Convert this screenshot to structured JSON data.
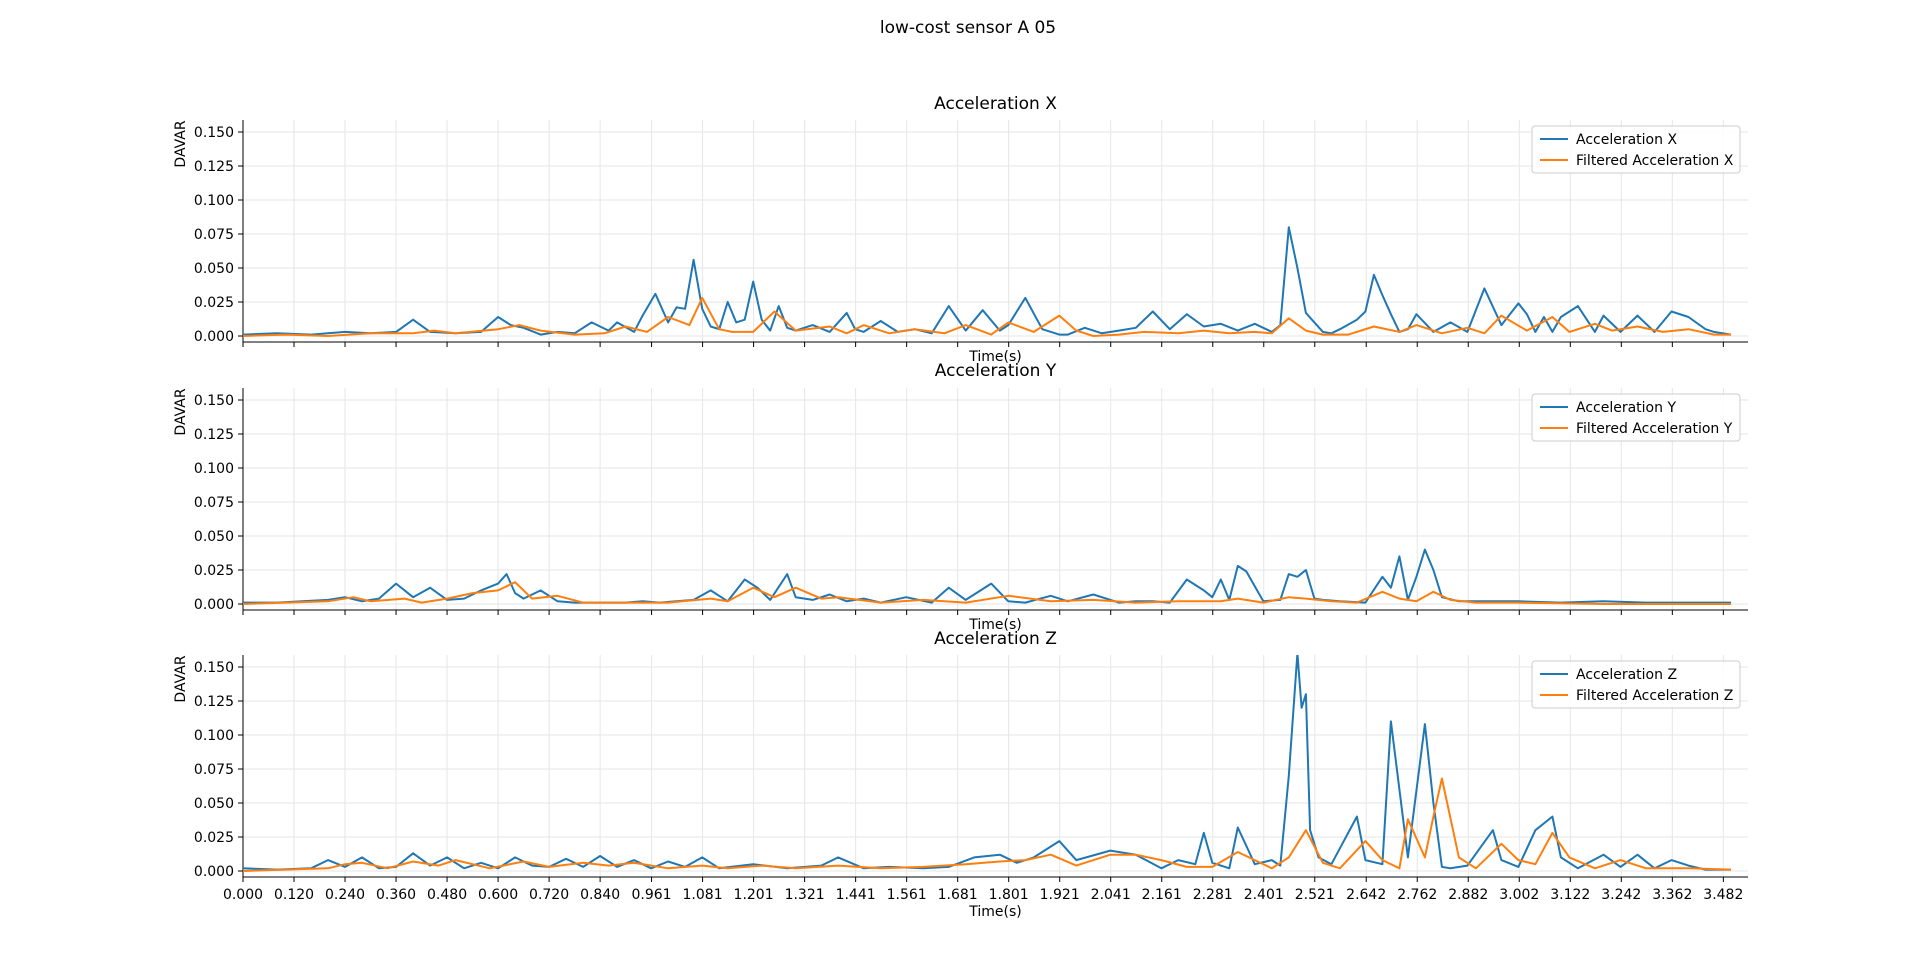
{
  "suptitle": "low-cost sensor A 05",
  "colors": {
    "raw": "#1f77b4",
    "filtered": "#ff7f0e",
    "grid": "#e6e6e6"
  },
  "chart_data": [
    {
      "type": "line",
      "title": "Acceleration X",
      "xlabel": "Time(s)",
      "ylabel": "DAVAR",
      "xlim": [
        0,
        3.54
      ],
      "ylim": [
        0,
        0.16
      ],
      "yticks": [
        "0.000",
        "0.025",
        "0.050",
        "0.075",
        "0.100",
        "0.125",
        "0.150"
      ],
      "legend": "top-right",
      "grid": true,
      "series": [
        {
          "name": "Acceleration X",
          "role": "raw",
          "x": [
            0.0,
            0.08,
            0.16,
            0.24,
            0.3,
            0.36,
            0.4,
            0.44,
            0.5,
            0.56,
            0.6,
            0.63,
            0.66,
            0.7,
            0.74,
            0.78,
            0.82,
            0.86,
            0.88,
            0.92,
            0.94,
            0.97,
            1.0,
            1.02,
            1.04,
            1.06,
            1.08,
            1.1,
            1.12,
            1.14,
            1.16,
            1.18,
            1.2,
            1.22,
            1.24,
            1.26,
            1.28,
            1.3,
            1.34,
            1.38,
            1.42,
            1.44,
            1.46,
            1.5,
            1.54,
            1.58,
            1.62,
            1.66,
            1.7,
            1.74,
            1.78,
            1.8,
            1.84,
            1.88,
            1.92,
            1.94,
            1.98,
            2.02,
            2.06,
            2.1,
            2.14,
            2.18,
            2.22,
            2.26,
            2.3,
            2.34,
            2.38,
            2.42,
            2.44,
            2.46,
            2.48,
            2.5,
            2.52,
            2.54,
            2.56,
            2.58,
            2.62,
            2.64,
            2.66,
            2.68,
            2.7,
            2.72,
            2.74,
            2.76,
            2.8,
            2.84,
            2.88,
            2.92,
            2.96,
            3.0,
            3.02,
            3.04,
            3.06,
            3.08,
            3.1,
            3.14,
            3.18,
            3.2,
            3.24,
            3.28,
            3.32,
            3.36,
            3.4,
            3.44,
            3.46,
            3.5
          ],
          "y": [
            0.001,
            0.002,
            0.001,
            0.003,
            0.002,
            0.003,
            0.012,
            0.003,
            0.002,
            0.003,
            0.014,
            0.008,
            0.006,
            0.001,
            0.003,
            0.002,
            0.01,
            0.004,
            0.01,
            0.003,
            0.015,
            0.031,
            0.01,
            0.021,
            0.02,
            0.056,
            0.02,
            0.007,
            0.005,
            0.025,
            0.01,
            0.012,
            0.04,
            0.012,
            0.004,
            0.022,
            0.006,
            0.004,
            0.008,
            0.003,
            0.017,
            0.005,
            0.003,
            0.011,
            0.003,
            0.005,
            0.002,
            0.022,
            0.004,
            0.019,
            0.004,
            0.008,
            0.028,
            0.005,
            0.001,
            0.001,
            0.006,
            0.002,
            0.004,
            0.006,
            0.018,
            0.005,
            0.016,
            0.007,
            0.009,
            0.004,
            0.009,
            0.003,
            0.008,
            0.08,
            0.05,
            0.017,
            0.01,
            0.003,
            0.002,
            0.005,
            0.012,
            0.018,
            0.045,
            0.03,
            0.016,
            0.003,
            0.005,
            0.016,
            0.003,
            0.01,
            0.003,
            0.035,
            0.008,
            0.024,
            0.016,
            0.003,
            0.014,
            0.003,
            0.014,
            0.022,
            0.003,
            0.015,
            0.003,
            0.015,
            0.003,
            0.018,
            0.014,
            0.005,
            0.003,
            0.001
          ]
        },
        {
          "name": "Filtered Acceleration X",
          "role": "filtered",
          "x": [
            0.0,
            0.1,
            0.2,
            0.3,
            0.4,
            0.45,
            0.5,
            0.6,
            0.65,
            0.7,
            0.78,
            0.85,
            0.9,
            0.95,
            1.0,
            1.05,
            1.08,
            1.12,
            1.15,
            1.2,
            1.25,
            1.3,
            1.38,
            1.42,
            1.46,
            1.52,
            1.58,
            1.65,
            1.7,
            1.76,
            1.8,
            1.86,
            1.92,
            1.96,
            2.0,
            2.06,
            2.12,
            2.2,
            2.26,
            2.32,
            2.38,
            2.42,
            2.46,
            2.5,
            2.54,
            2.6,
            2.66,
            2.72,
            2.76,
            2.82,
            2.88,
            2.92,
            2.96,
            3.02,
            3.08,
            3.12,
            3.18,
            3.22,
            3.28,
            3.34,
            3.4,
            3.46,
            3.5
          ],
          "y": [
            0.0,
            0.001,
            0.0,
            0.002,
            0.002,
            0.004,
            0.002,
            0.005,
            0.008,
            0.004,
            0.001,
            0.002,
            0.007,
            0.003,
            0.014,
            0.008,
            0.028,
            0.005,
            0.003,
            0.003,
            0.018,
            0.004,
            0.007,
            0.002,
            0.008,
            0.002,
            0.005,
            0.002,
            0.008,
            0.001,
            0.01,
            0.003,
            0.015,
            0.004,
            0.0,
            0.001,
            0.003,
            0.002,
            0.004,
            0.002,
            0.003,
            0.002,
            0.013,
            0.004,
            0.001,
            0.001,
            0.007,
            0.003,
            0.008,
            0.002,
            0.006,
            0.002,
            0.015,
            0.004,
            0.014,
            0.003,
            0.009,
            0.004,
            0.007,
            0.003,
            0.005,
            0.001,
            0.001
          ]
        }
      ]
    },
    {
      "type": "line",
      "title": "Acceleration Y",
      "xlabel": "Time(s)",
      "ylabel": "DAVAR",
      "xlim": [
        0,
        3.54
      ],
      "ylim": [
        0,
        0.16
      ],
      "yticks": [
        "0.000",
        "0.025",
        "0.050",
        "0.075",
        "0.100",
        "0.125",
        "0.150"
      ],
      "legend": "top-right",
      "grid": true,
      "series": [
        {
          "name": "Acceleration Y",
          "role": "raw",
          "x": [
            0.0,
            0.08,
            0.14,
            0.2,
            0.24,
            0.28,
            0.32,
            0.36,
            0.4,
            0.44,
            0.48,
            0.52,
            0.56,
            0.6,
            0.62,
            0.64,
            0.66,
            0.7,
            0.74,
            0.78,
            0.82,
            0.86,
            0.9,
            0.94,
            0.98,
            1.02,
            1.06,
            1.1,
            1.14,
            1.18,
            1.21,
            1.24,
            1.28,
            1.3,
            1.34,
            1.38,
            1.42,
            1.46,
            1.5,
            1.56,
            1.62,
            1.66,
            1.7,
            1.76,
            1.8,
            1.84,
            1.9,
            1.94,
            2.0,
            2.06,
            2.1,
            2.14,
            2.18,
            2.22,
            2.26,
            2.28,
            2.3,
            2.32,
            2.34,
            2.36,
            2.4,
            2.44,
            2.46,
            2.48,
            2.5,
            2.52,
            2.54,
            2.58,
            2.64,
            2.68,
            2.7,
            2.72,
            2.74,
            2.76,
            2.78,
            2.8,
            2.82,
            2.86,
            2.92,
            3.0,
            3.1,
            3.2,
            3.3,
            3.4,
            3.5
          ],
          "y": [
            0.001,
            0.001,
            0.002,
            0.003,
            0.005,
            0.002,
            0.004,
            0.015,
            0.005,
            0.012,
            0.003,
            0.004,
            0.01,
            0.015,
            0.022,
            0.008,
            0.004,
            0.01,
            0.002,
            0.001,
            0.001,
            0.001,
            0.001,
            0.002,
            0.001,
            0.002,
            0.003,
            0.01,
            0.002,
            0.018,
            0.012,
            0.003,
            0.022,
            0.005,
            0.003,
            0.007,
            0.002,
            0.004,
            0.001,
            0.005,
            0.001,
            0.012,
            0.003,
            0.015,
            0.002,
            0.001,
            0.006,
            0.002,
            0.007,
            0.001,
            0.002,
            0.002,
            0.001,
            0.018,
            0.01,
            0.005,
            0.018,
            0.003,
            0.028,
            0.024,
            0.002,
            0.003,
            0.022,
            0.02,
            0.025,
            0.004,
            0.003,
            0.002,
            0.001,
            0.02,
            0.012,
            0.035,
            0.003,
            0.02,
            0.04,
            0.025,
            0.005,
            0.002,
            0.002,
            0.002,
            0.001,
            0.002,
            0.001,
            0.001,
            0.001
          ]
        },
        {
          "name": "Filtered Acceleration Y",
          "role": "filtered",
          "x": [
            0.0,
            0.1,
            0.2,
            0.26,
            0.3,
            0.38,
            0.42,
            0.48,
            0.54,
            0.6,
            0.64,
            0.68,
            0.74,
            0.8,
            0.9,
            1.0,
            1.1,
            1.14,
            1.2,
            1.25,
            1.3,
            1.36,
            1.4,
            1.5,
            1.6,
            1.7,
            1.8,
            1.9,
            2.0,
            2.1,
            2.2,
            2.3,
            2.34,
            2.4,
            2.46,
            2.5,
            2.56,
            2.62,
            2.68,
            2.72,
            2.76,
            2.8,
            2.84,
            2.9,
            3.0,
            3.2,
            3.5
          ],
          "y": [
            0.0,
            0.001,
            0.002,
            0.005,
            0.002,
            0.004,
            0.001,
            0.004,
            0.008,
            0.01,
            0.016,
            0.004,
            0.006,
            0.001,
            0.001,
            0.001,
            0.004,
            0.002,
            0.012,
            0.005,
            0.012,
            0.004,
            0.005,
            0.001,
            0.003,
            0.001,
            0.006,
            0.002,
            0.003,
            0.001,
            0.002,
            0.002,
            0.004,
            0.001,
            0.005,
            0.004,
            0.002,
            0.001,
            0.009,
            0.004,
            0.002,
            0.009,
            0.003,
            0.001,
            0.001,
            0.0,
            0.0
          ]
        }
      ]
    },
    {
      "type": "line",
      "title": "Acceleration Z",
      "xlabel": "Time(s)",
      "ylabel": "DAVAR",
      "xlim": [
        0,
        3.54
      ],
      "ylim": [
        0,
        0.16
      ],
      "yticks": [
        "0.000",
        "0.025",
        "0.050",
        "0.075",
        "0.100",
        "0.125",
        "0.150"
      ],
      "xticks": [
        "0.000",
        "0.120",
        "0.240",
        "0.360",
        "0.480",
        "0.600",
        "0.720",
        "0.840",
        "0.961",
        "1.081",
        "1.201",
        "1.321",
        "1.441",
        "1.561",
        "1.681",
        "1.801",
        "1.921",
        "2.041",
        "2.161",
        "2.281",
        "2.401",
        "2.521",
        "2.642",
        "2.762",
        "2.882",
        "3.002",
        "3.122",
        "3.242",
        "3.362",
        "3.482"
      ],
      "legend": "top-right",
      "grid": true,
      "series": [
        {
          "name": "Acceleration Z",
          "role": "raw",
          "x": [
            0.0,
            0.08,
            0.16,
            0.2,
            0.24,
            0.28,
            0.32,
            0.36,
            0.4,
            0.44,
            0.48,
            0.52,
            0.56,
            0.6,
            0.64,
            0.68,
            0.72,
            0.76,
            0.8,
            0.84,
            0.88,
            0.92,
            0.96,
            1.0,
            1.04,
            1.08,
            1.12,
            1.2,
            1.28,
            1.36,
            1.4,
            1.46,
            1.52,
            1.6,
            1.66,
            1.72,
            1.78,
            1.82,
            1.86,
            1.92,
            1.96,
            2.04,
            2.1,
            2.16,
            2.2,
            2.24,
            2.26,
            2.28,
            2.32,
            2.34,
            2.38,
            2.42,
            2.44,
            2.46,
            2.48,
            2.49,
            2.5,
            2.51,
            2.53,
            2.56,
            2.62,
            2.64,
            2.68,
            2.7,
            2.72,
            2.74,
            2.78,
            2.8,
            2.82,
            2.84,
            2.88,
            2.94,
            2.96,
            3.0,
            3.04,
            3.08,
            3.1,
            3.14,
            3.2,
            3.24,
            3.28,
            3.32,
            3.36,
            3.4,
            3.44,
            3.5
          ],
          "y": [
            0.002,
            0.001,
            0.002,
            0.008,
            0.003,
            0.01,
            0.002,
            0.003,
            0.013,
            0.004,
            0.01,
            0.002,
            0.006,
            0.002,
            0.01,
            0.004,
            0.003,
            0.009,
            0.003,
            0.011,
            0.003,
            0.008,
            0.002,
            0.007,
            0.003,
            0.01,
            0.002,
            0.005,
            0.002,
            0.004,
            0.01,
            0.002,
            0.003,
            0.002,
            0.003,
            0.01,
            0.012,
            0.006,
            0.01,
            0.022,
            0.008,
            0.015,
            0.012,
            0.002,
            0.008,
            0.005,
            0.028,
            0.006,
            0.002,
            0.032,
            0.005,
            0.008,
            0.004,
            0.07,
            0.16,
            0.12,
            0.13,
            0.03,
            0.01,
            0.005,
            0.04,
            0.008,
            0.005,
            0.11,
            0.06,
            0.01,
            0.108,
            0.05,
            0.003,
            0.002,
            0.004,
            0.03,
            0.008,
            0.003,
            0.03,
            0.04,
            0.01,
            0.002,
            0.012,
            0.003,
            0.012,
            0.002,
            0.008,
            0.004,
            0.001,
            0.001
          ]
        },
        {
          "name": "Filtered Acceleration Z",
          "role": "filtered",
          "x": [
            0.0,
            0.1,
            0.2,
            0.24,
            0.28,
            0.34,
            0.4,
            0.46,
            0.5,
            0.58,
            0.66,
            0.72,
            0.8,
            0.86,
            0.92,
            1.0,
            1.08,
            1.14,
            1.22,
            1.3,
            1.4,
            1.5,
            1.6,
            1.7,
            1.78,
            1.84,
            1.9,
            1.96,
            2.04,
            2.1,
            2.16,
            2.22,
            2.28,
            2.34,
            2.38,
            2.42,
            2.46,
            2.5,
            2.54,
            2.58,
            2.64,
            2.68,
            2.72,
            2.74,
            2.78,
            2.8,
            2.82,
            2.86,
            2.9,
            2.96,
            3.0,
            3.04,
            3.08,
            3.12,
            3.18,
            3.24,
            3.3,
            3.4,
            3.5
          ],
          "y": [
            0.0,
            0.001,
            0.002,
            0.005,
            0.006,
            0.002,
            0.007,
            0.004,
            0.008,
            0.002,
            0.007,
            0.003,
            0.006,
            0.004,
            0.006,
            0.002,
            0.004,
            0.002,
            0.004,
            0.002,
            0.004,
            0.002,
            0.003,
            0.005,
            0.007,
            0.008,
            0.012,
            0.004,
            0.012,
            0.012,
            0.008,
            0.003,
            0.003,
            0.014,
            0.008,
            0.002,
            0.01,
            0.03,
            0.006,
            0.002,
            0.022,
            0.008,
            0.002,
            0.038,
            0.01,
            0.04,
            0.068,
            0.01,
            0.002,
            0.02,
            0.008,
            0.005,
            0.028,
            0.01,
            0.002,
            0.008,
            0.002,
            0.002,
            0.001
          ]
        }
      ]
    }
  ]
}
